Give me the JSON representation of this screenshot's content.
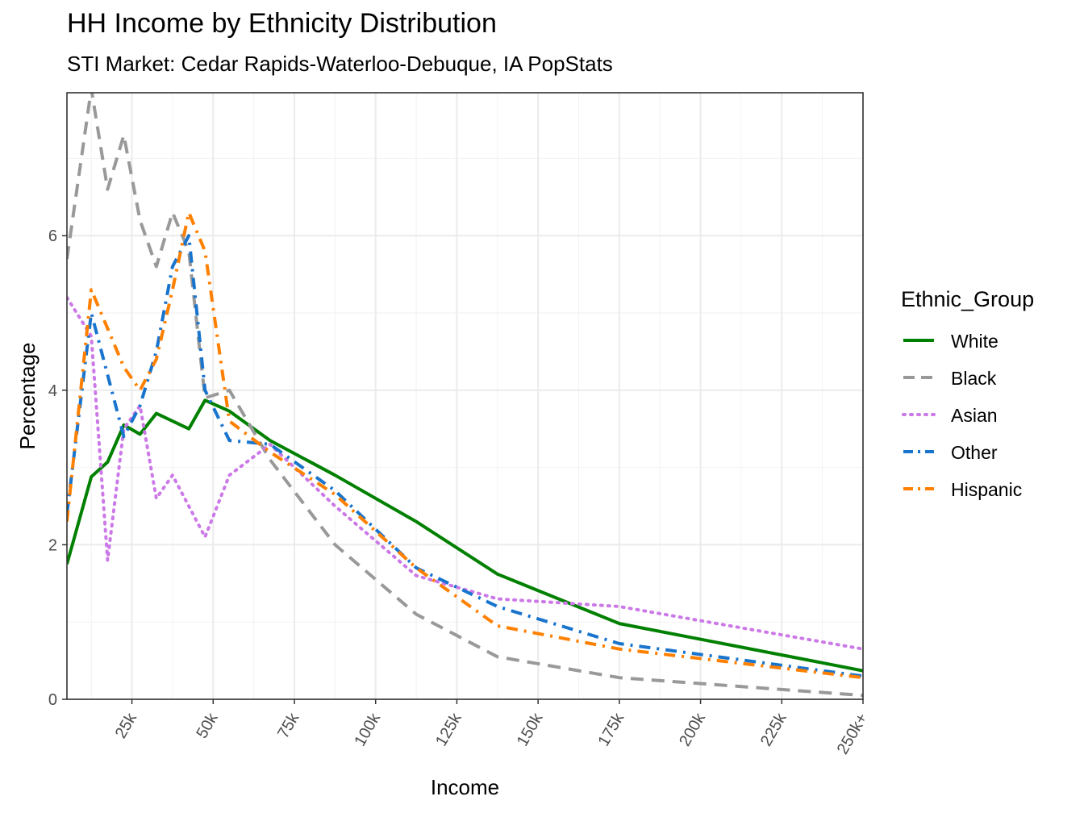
{
  "chart_data": {
    "type": "line",
    "title": "HH Income by Ethnicity Distribution",
    "subtitle": "STI Market: Cedar Rapids-Waterloo-Debuque, IA PopStats",
    "xlabel": "Income",
    "ylabel": "Percentage",
    "x_tick_values": [
      25000,
      50000,
      75000,
      100000,
      125000,
      150000,
      175000,
      200000,
      225000,
      250000
    ],
    "x_tick_labels": [
      "25k",
      "50k",
      "75k",
      "100k",
      "125k",
      "150k",
      "175k",
      "200k",
      "225k",
      "250k+"
    ],
    "y_tick_values": [
      0,
      2,
      4,
      6
    ],
    "y_tick_labels": [
      "0",
      "2",
      "4",
      "6"
    ],
    "xlim": [
      5000,
      250000
    ],
    "ylim": [
      0,
      7.85
    ],
    "grid": true,
    "legend_title": "Ethnic_Group",
    "legend_position": "right",
    "x": [
      5000,
      12500,
      17500,
      22500,
      27500,
      32500,
      37500,
      42500,
      47500,
      55000,
      67500,
      87500,
      112500,
      137500,
      175000,
      250000
    ],
    "series": [
      {
        "name": "White",
        "color": "#008000",
        "dash": "solid",
        "values": [
          1.75,
          2.88,
          3.07,
          3.55,
          3.43,
          3.7,
          3.6,
          3.5,
          3.87,
          3.73,
          3.35,
          2.9,
          2.3,
          1.62,
          0.98,
          0.37
        ]
      },
      {
        "name": "Black",
        "color": "#999999",
        "dash": "dashed",
        "values": [
          5.7,
          7.9,
          6.6,
          7.3,
          6.2,
          5.6,
          6.3,
          5.8,
          3.9,
          4.0,
          3.1,
          2.0,
          1.1,
          0.55,
          0.28,
          0.05
        ]
      },
      {
        "name": "Asian",
        "color": "#CC79E8",
        "dotted": true,
        "dash": "dotted",
        "values": [
          5.2,
          4.7,
          1.8,
          3.5,
          3.8,
          2.6,
          2.9,
          2.5,
          2.1,
          2.9,
          3.3,
          2.5,
          1.6,
          1.3,
          1.2,
          0.65
        ]
      },
      {
        "name": "Other",
        "color": "#1874CD",
        "dash": "dashdot",
        "values": [
          2.4,
          5.0,
          4.2,
          3.4,
          3.8,
          4.5,
          5.6,
          6.0,
          4.0,
          3.35,
          3.3,
          2.7,
          1.7,
          1.2,
          0.72,
          0.3
        ]
      },
      {
        "name": "Hispanic",
        "color": "#FF8000",
        "dash": "dashdot",
        "values": [
          2.3,
          5.3,
          4.8,
          4.3,
          4.0,
          4.4,
          5.3,
          6.3,
          5.8,
          3.6,
          3.2,
          2.65,
          1.7,
          0.95,
          0.65,
          0.28
        ]
      }
    ]
  }
}
